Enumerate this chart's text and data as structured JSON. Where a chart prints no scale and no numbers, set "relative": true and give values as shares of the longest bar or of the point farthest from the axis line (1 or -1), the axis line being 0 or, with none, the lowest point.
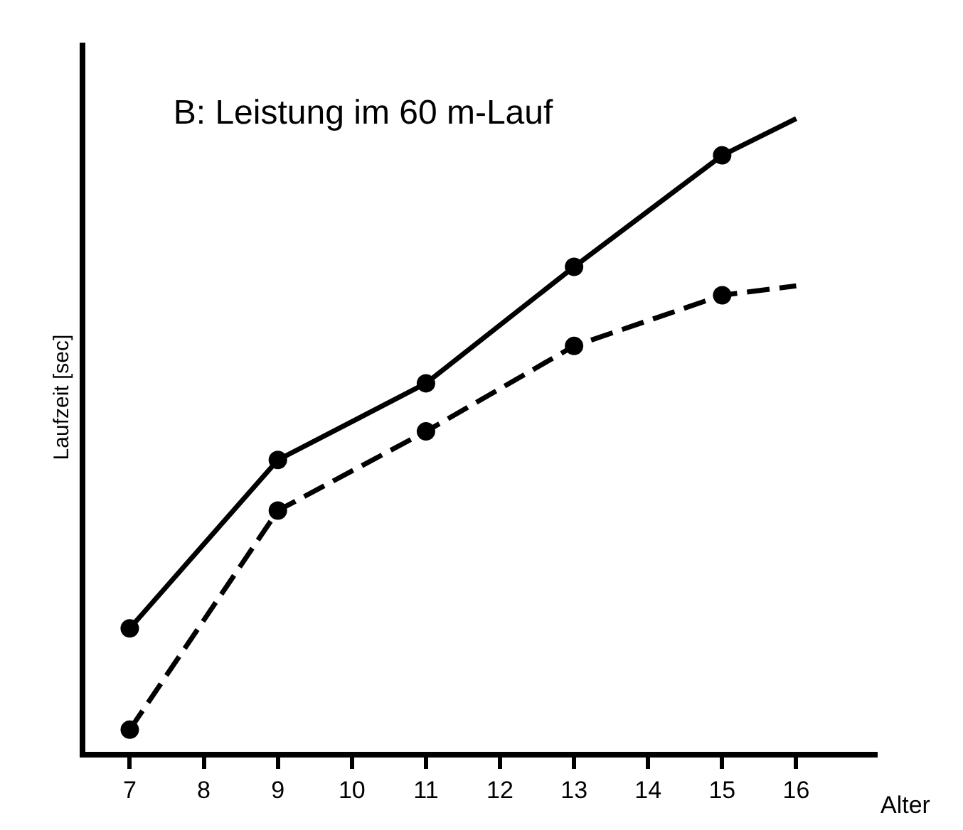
{
  "chart_data": {
    "type": "line",
    "title": "B: Leistung im 60 m-Lauf",
    "xlabel": "Alter",
    "ylabel": "Laufzeit [sec]",
    "relative": true,
    "xlim": [
      6.4,
      17.1
    ],
    "xticks": [
      7,
      8,
      9,
      10,
      11,
      12,
      13,
      14,
      15,
      16
    ],
    "tick_labels": "x",
    "series": [
      {
        "color": "#000000",
        "line_style": "solid",
        "marker": "none",
        "x": [
          7,
          9,
          11,
          13,
          15,
          16
        ],
        "values": [
          0.195,
          0.461,
          0.582,
          0.766,
          0.942,
          1.0
        ]
      },
      {
        "color": "#000000",
        "line_style": "dashed",
        "marker": "none",
        "x": [
          7,
          9,
          11,
          13,
          15,
          16
        ],
        "values": [
          0.035,
          0.381,
          0.506,
          0.641,
          0.721,
          0.736
        ]
      },
      {
        "type": "scatter",
        "color": "#000000",
        "marker": "circle",
        "x": [
          7,
          9,
          11,
          13,
          15
        ],
        "values": [
          0.195,
          0.461,
          0.582,
          0.766,
          0.942
        ]
      },
      {
        "type": "scatter",
        "color": "#000000",
        "marker": "circle",
        "x": [
          7,
          9,
          11,
          13,
          15
        ],
        "values": [
          0.035,
          0.381,
          0.506,
          0.641,
          0.721
        ]
      }
    ]
  }
}
